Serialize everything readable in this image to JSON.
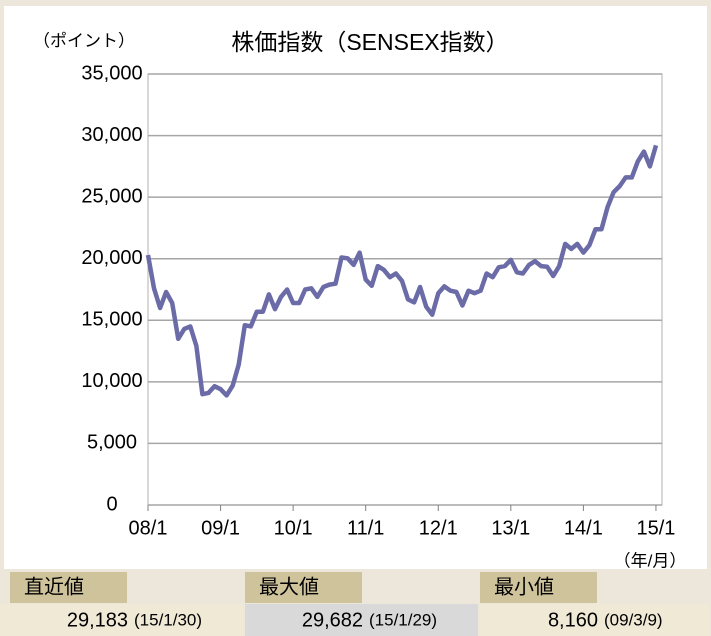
{
  "chart_data": {
    "type": "line",
    "title": "株価指数（SENSEX指数）",
    "y_label": "（ポイント）",
    "x_label": "（年/月）",
    "color": "#6b6ba8",
    "grid": true,
    "x": [
      0,
      1,
      2,
      3,
      4,
      5,
      6,
      7,
      8,
      9,
      10,
      11,
      12,
      13,
      14,
      15,
      16,
      17,
      18,
      19,
      20,
      21,
      22,
      23,
      24,
      25,
      26,
      27,
      28,
      29,
      30,
      31,
      32,
      33,
      34,
      35,
      36,
      37,
      38,
      39,
      40,
      41,
      42,
      43,
      44,
      45,
      46,
      47,
      48,
      49,
      50,
      51,
      52,
      53,
      54,
      55,
      56,
      57,
      58,
      59,
      60,
      61,
      62,
      63,
      64,
      65,
      66,
      67,
      68,
      69,
      70,
      71,
      72,
      73,
      74,
      75,
      76,
      77,
      78,
      79,
      80,
      81,
      82,
      83,
      84
    ],
    "values": [
      20300,
      17600,
      16000,
      17300,
      16400,
      13500,
      14300,
      14500,
      12900,
      9000,
      9100,
      9650,
      9400,
      8900,
      9700,
      11400,
      14600,
      14500,
      15700,
      15700,
      17100,
      15900,
      16900,
      17500,
      16400,
      16400,
      17500,
      17600,
      16900,
      17700,
      17900,
      17970,
      20100,
      20030,
      19500,
      20500,
      18300,
      17800,
      19400,
      19100,
      18500,
      18800,
      18200,
      16700,
      16450,
      17700,
      16100,
      15450,
      17200,
      17750,
      17400,
      17300,
      16200,
      17400,
      17200,
      17400,
      18800,
      18500,
      19300,
      19400,
      19900,
      18900,
      18800,
      19500,
      19800,
      19400,
      19350,
      18600,
      19400,
      21200,
      20800,
      21200,
      20500,
      21100,
      22400,
      22400,
      24200,
      25400,
      25900,
      26600,
      26600,
      27900,
      28700,
      27500,
      29200
    ],
    "xlim": [
      0,
      85
    ],
    "xticks": [
      {
        "value": 0,
        "label": "08/1"
      },
      {
        "value": 12,
        "label": "09/1"
      },
      {
        "value": 24,
        "label": "10/1"
      },
      {
        "value": 36,
        "label": "11/1"
      },
      {
        "value": 48,
        "label": "12/1"
      },
      {
        "value": 60,
        "label": "13/1"
      },
      {
        "value": 72,
        "label": "14/1"
      },
      {
        "value": 84,
        "label": "15/1"
      }
    ],
    "ylim": [
      0,
      35000
    ],
    "yticks": [
      0,
      {
        "value": 5000,
        "label": "5,000"
      },
      {
        "value": 10000,
        "label": "10,000"
      },
      {
        "value": 15000,
        "label": "15,000"
      },
      {
        "value": 20000,
        "label": "20,000"
      },
      {
        "value": 25000,
        "label": "25,000"
      },
      {
        "value": 30000,
        "label": "30,000"
      },
      {
        "value": 35000,
        "label": "35,000"
      }
    ]
  },
  "summary": [
    {
      "label": "直近値",
      "value": "29,183",
      "date": "(15/1/30)"
    },
    {
      "label": "最大値",
      "value": "29,682",
      "date": "(15/1/29)"
    },
    {
      "label": "最小値",
      "value": "8,160",
      "date": "(09/3/9)"
    }
  ]
}
